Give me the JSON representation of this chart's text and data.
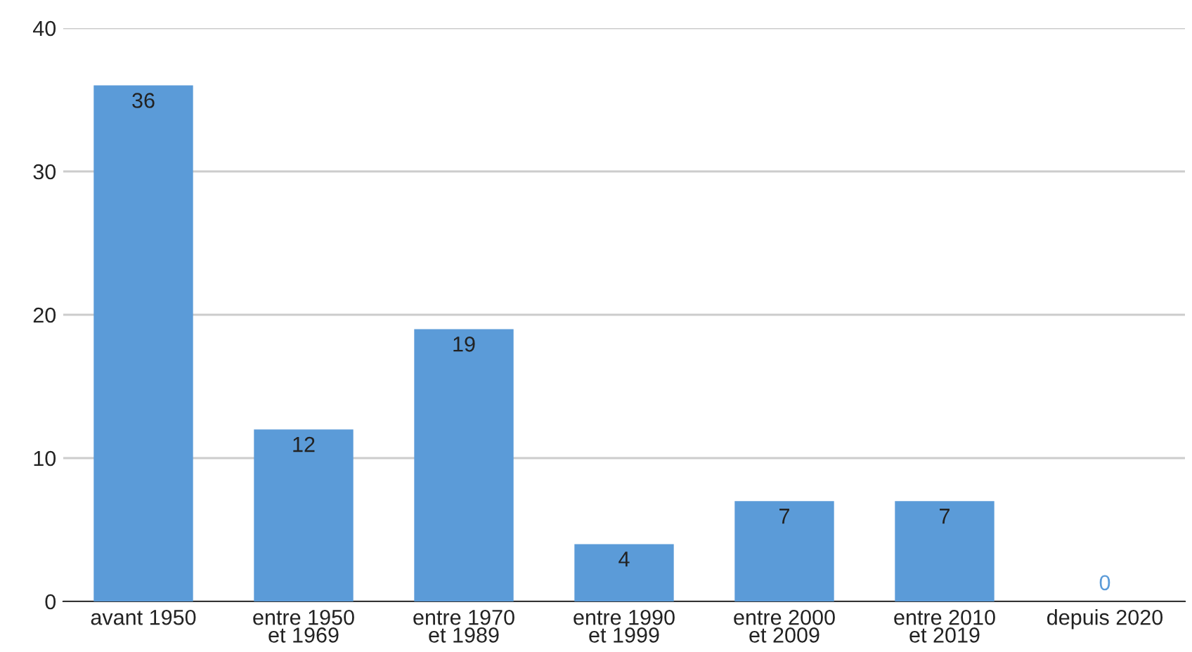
{
  "chart_data": {
    "type": "bar",
    "categories": [
      "avant 1950",
      "entre 1950\net 1969",
      "entre 1970\net 1989",
      "entre 1990\net 1999",
      "entre 2000\net 2009",
      "entre 2010\net 2019",
      "depuis 2020"
    ],
    "values": [
      36,
      12,
      19,
      4,
      7,
      7,
      0
    ],
    "color": "#5b9bd8",
    "ylim": [
      0,
      40
    ],
    "yticks": [
      0,
      10,
      20,
      30,
      40
    ],
    "grid": "y",
    "data_labels": true,
    "legend": false
  }
}
